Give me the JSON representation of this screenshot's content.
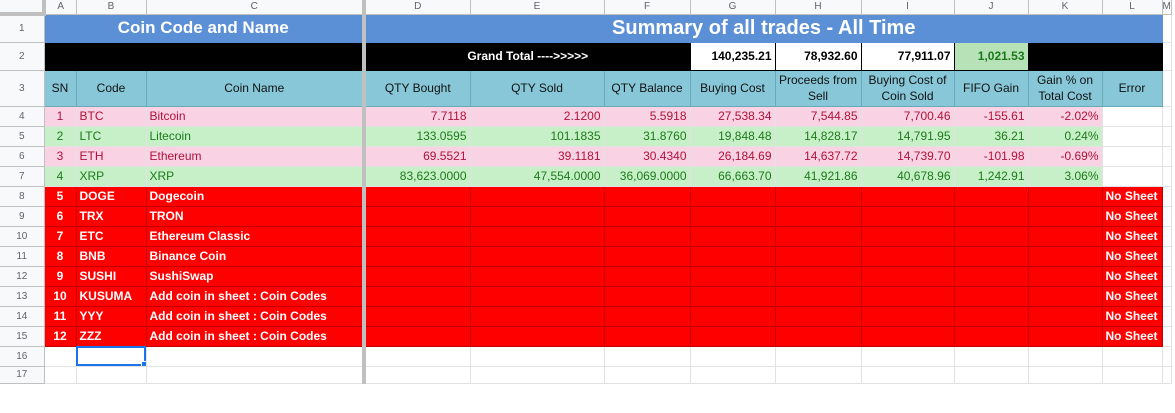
{
  "columns": [
    "A",
    "B",
    "C",
    "D",
    "E",
    "F",
    "G",
    "H",
    "I",
    "J",
    "K",
    "L"
  ],
  "rows_numbers": [
    "1",
    "2",
    "3",
    "4",
    "5",
    "6",
    "7",
    "8",
    "9",
    "10",
    "11",
    "12",
    "13",
    "14",
    "15",
    "16",
    "17"
  ],
  "titles": {
    "left": "Coin Code and Name",
    "right": "Summary of all trades - All Time"
  },
  "grand_total": {
    "label": "Grand Total ---->>>>>",
    "buying_cost": "140,235.21",
    "proceeds": "78,932.60",
    "buying_cost_sold": "77,911.07",
    "fifo_gain": "1,021.53"
  },
  "headers": {
    "sn": "SN",
    "code": "Code",
    "coin_name": "Coin Name",
    "qty_bought": "QTY Bought",
    "qty_sold": "QTY Sold",
    "qty_balance": "QTY Balance",
    "buying_cost": "Buying Cost",
    "proceeds": "Proceeds from Sell",
    "buying_cost_sold": "Buying Cost of Coin Sold",
    "fifo_gain": "FIFO Gain",
    "gain_pct": "Gain % on Total Cost",
    "error": "Error"
  },
  "trades": [
    {
      "sn": "1",
      "code": "BTC",
      "name": "Bitcoin",
      "qty_bought": "7.7118",
      "qty_sold": "2.1200",
      "qty_balance": "5.5918",
      "buying_cost": "27,538.34",
      "proceeds": "7,544.85",
      "buying_cost_sold": "7,700.46",
      "fifo_gain": "-155.61",
      "gain_pct": "-2.02%",
      "error": "",
      "style": "pink"
    },
    {
      "sn": "2",
      "code": "LTC",
      "name": "Litecoin",
      "qty_bought": "133.0595",
      "qty_sold": "101.1835",
      "qty_balance": "31.8760",
      "buying_cost": "19,848.48",
      "proceeds": "14,828.17",
      "buying_cost_sold": "14,791.95",
      "fifo_gain": "36.21",
      "gain_pct": "0.24%",
      "error": "",
      "style": "green"
    },
    {
      "sn": "3",
      "code": "ETH",
      "name": "Ethereum",
      "qty_bought": "69.5521",
      "qty_sold": "39.1181",
      "qty_balance": "30.4340",
      "buying_cost": "26,184.69",
      "proceeds": "14,637.72",
      "buying_cost_sold": "14,739.70",
      "fifo_gain": "-101.98",
      "gain_pct": "-0.69%",
      "error": "",
      "style": "pink"
    },
    {
      "sn": "4",
      "code": "XRP",
      "name": "XRP",
      "qty_bought": "83,623.0000",
      "qty_sold": "47,554.0000",
      "qty_balance": "36,069.0000",
      "buying_cost": "66,663.70",
      "proceeds": "41,921.86",
      "buying_cost_sold": "40,678.96",
      "fifo_gain": "1,242.91",
      "gain_pct": "3.06%",
      "error": "",
      "style": "green"
    },
    {
      "sn": "5",
      "code": "DOGE",
      "name": "Dogecoin",
      "qty_bought": "",
      "qty_sold": "",
      "qty_balance": "",
      "buying_cost": "",
      "proceeds": "",
      "buying_cost_sold": "",
      "fifo_gain": "",
      "gain_pct": "",
      "error": "No Sheet",
      "style": "red"
    },
    {
      "sn": "6",
      "code": "TRX",
      "name": "TRON",
      "qty_bought": "",
      "qty_sold": "",
      "qty_balance": "",
      "buying_cost": "",
      "proceeds": "",
      "buying_cost_sold": "",
      "fifo_gain": "",
      "gain_pct": "",
      "error": "No Sheet",
      "style": "red"
    },
    {
      "sn": "7",
      "code": "ETC",
      "name": "Ethereum Classic",
      "qty_bought": "",
      "qty_sold": "",
      "qty_balance": "",
      "buying_cost": "",
      "proceeds": "",
      "buying_cost_sold": "",
      "fifo_gain": "",
      "gain_pct": "",
      "error": "No Sheet",
      "style": "red"
    },
    {
      "sn": "8",
      "code": "BNB",
      "name": "Binance Coin",
      "qty_bought": "",
      "qty_sold": "",
      "qty_balance": "",
      "buying_cost": "",
      "proceeds": "",
      "buying_cost_sold": "",
      "fifo_gain": "",
      "gain_pct": "",
      "error": "No Sheet",
      "style": "red"
    },
    {
      "sn": "9",
      "code": "SUSHI",
      "name": "SushiSwap",
      "qty_bought": "",
      "qty_sold": "",
      "qty_balance": "",
      "buying_cost": "",
      "proceeds": "",
      "buying_cost_sold": "",
      "fifo_gain": "",
      "gain_pct": "",
      "error": "No Sheet",
      "style": "red"
    },
    {
      "sn": "10",
      "code": "KUSUMA",
      "name": "Add coin in sheet : Coin Codes",
      "qty_bought": "",
      "qty_sold": "",
      "qty_balance": "",
      "buying_cost": "",
      "proceeds": "",
      "buying_cost_sold": "",
      "fifo_gain": "",
      "gain_pct": "",
      "error": "No Sheet",
      "style": "red"
    },
    {
      "sn": "11",
      "code": "YYY",
      "name": "Add coin in sheet : Coin Codes",
      "qty_bought": "",
      "qty_sold": "",
      "qty_balance": "",
      "buying_cost": "",
      "proceeds": "",
      "buying_cost_sold": "",
      "fifo_gain": "",
      "gain_pct": "",
      "error": "No Sheet",
      "style": "red"
    },
    {
      "sn": "12",
      "code": "ZZZ",
      "name": "Add coin in sheet : Coin Codes",
      "qty_bought": "",
      "qty_sold": "",
      "qty_balance": "",
      "buying_cost": "",
      "proceeds": "",
      "buying_cost_sold": "",
      "fifo_gain": "",
      "gain_pct": "",
      "error": "No Sheet",
      "style": "red"
    }
  ],
  "colors": {
    "title_bg": "#5b8fd6",
    "header_bg": "#87c7d8",
    "pink_row": "#f9d2e3",
    "green_row": "#c8f0c8",
    "error_row": "#ff0000",
    "fifo_total_bg": "#b7e1b7",
    "selection": "#1a73e8"
  }
}
